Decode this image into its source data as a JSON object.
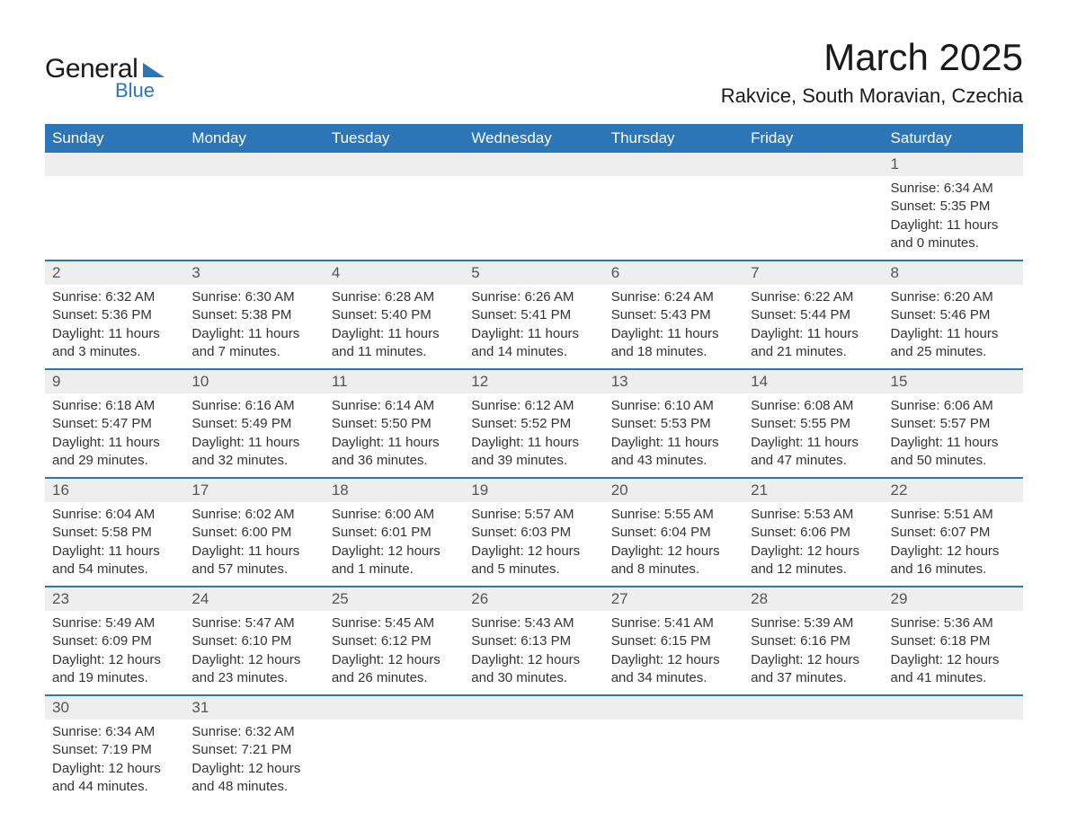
{
  "brand": {
    "word1": "General",
    "word2": "Blue"
  },
  "title": "March 2025",
  "location": "Rakvice, South Moravian, Czechia",
  "colors": {
    "header_bg": "#2c76b8",
    "header_text": "#ffffff",
    "daynum_bg": "#eeeeee",
    "border": "#2c76b8",
    "text": "#333333"
  },
  "day_headers": [
    "Sunday",
    "Monday",
    "Tuesday",
    "Wednesday",
    "Thursday",
    "Friday",
    "Saturday"
  ],
  "weeks": [
    [
      null,
      null,
      null,
      null,
      null,
      null,
      {
        "n": "1",
        "sunrise": "6:34 AM",
        "sunset": "5:35 PM",
        "dl": "11 hours and 0 minutes."
      }
    ],
    [
      {
        "n": "2",
        "sunrise": "6:32 AM",
        "sunset": "5:36 PM",
        "dl": "11 hours and 3 minutes."
      },
      {
        "n": "3",
        "sunrise": "6:30 AM",
        "sunset": "5:38 PM",
        "dl": "11 hours and 7 minutes."
      },
      {
        "n": "4",
        "sunrise": "6:28 AM",
        "sunset": "5:40 PM",
        "dl": "11 hours and 11 minutes."
      },
      {
        "n": "5",
        "sunrise": "6:26 AM",
        "sunset": "5:41 PM",
        "dl": "11 hours and 14 minutes."
      },
      {
        "n": "6",
        "sunrise": "6:24 AM",
        "sunset": "5:43 PM",
        "dl": "11 hours and 18 minutes."
      },
      {
        "n": "7",
        "sunrise": "6:22 AM",
        "sunset": "5:44 PM",
        "dl": "11 hours and 21 minutes."
      },
      {
        "n": "8",
        "sunrise": "6:20 AM",
        "sunset": "5:46 PM",
        "dl": "11 hours and 25 minutes."
      }
    ],
    [
      {
        "n": "9",
        "sunrise": "6:18 AM",
        "sunset": "5:47 PM",
        "dl": "11 hours and 29 minutes."
      },
      {
        "n": "10",
        "sunrise": "6:16 AM",
        "sunset": "5:49 PM",
        "dl": "11 hours and 32 minutes."
      },
      {
        "n": "11",
        "sunrise": "6:14 AM",
        "sunset": "5:50 PM",
        "dl": "11 hours and 36 minutes."
      },
      {
        "n": "12",
        "sunrise": "6:12 AM",
        "sunset": "5:52 PM",
        "dl": "11 hours and 39 minutes."
      },
      {
        "n": "13",
        "sunrise": "6:10 AM",
        "sunset": "5:53 PM",
        "dl": "11 hours and 43 minutes."
      },
      {
        "n": "14",
        "sunrise": "6:08 AM",
        "sunset": "5:55 PM",
        "dl": "11 hours and 47 minutes."
      },
      {
        "n": "15",
        "sunrise": "6:06 AM",
        "sunset": "5:57 PM",
        "dl": "11 hours and 50 minutes."
      }
    ],
    [
      {
        "n": "16",
        "sunrise": "6:04 AM",
        "sunset": "5:58 PM",
        "dl": "11 hours and 54 minutes."
      },
      {
        "n": "17",
        "sunrise": "6:02 AM",
        "sunset": "6:00 PM",
        "dl": "11 hours and 57 minutes."
      },
      {
        "n": "18",
        "sunrise": "6:00 AM",
        "sunset": "6:01 PM",
        "dl": "12 hours and 1 minute."
      },
      {
        "n": "19",
        "sunrise": "5:57 AM",
        "sunset": "6:03 PM",
        "dl": "12 hours and 5 minutes."
      },
      {
        "n": "20",
        "sunrise": "5:55 AM",
        "sunset": "6:04 PM",
        "dl": "12 hours and 8 minutes."
      },
      {
        "n": "21",
        "sunrise": "5:53 AM",
        "sunset": "6:06 PM",
        "dl": "12 hours and 12 minutes."
      },
      {
        "n": "22",
        "sunrise": "5:51 AM",
        "sunset": "6:07 PM",
        "dl": "12 hours and 16 minutes."
      }
    ],
    [
      {
        "n": "23",
        "sunrise": "5:49 AM",
        "sunset": "6:09 PM",
        "dl": "12 hours and 19 minutes."
      },
      {
        "n": "24",
        "sunrise": "5:47 AM",
        "sunset": "6:10 PM",
        "dl": "12 hours and 23 minutes."
      },
      {
        "n": "25",
        "sunrise": "5:45 AM",
        "sunset": "6:12 PM",
        "dl": "12 hours and 26 minutes."
      },
      {
        "n": "26",
        "sunrise": "5:43 AM",
        "sunset": "6:13 PM",
        "dl": "12 hours and 30 minutes."
      },
      {
        "n": "27",
        "sunrise": "5:41 AM",
        "sunset": "6:15 PM",
        "dl": "12 hours and 34 minutes."
      },
      {
        "n": "28",
        "sunrise": "5:39 AM",
        "sunset": "6:16 PM",
        "dl": "12 hours and 37 minutes."
      },
      {
        "n": "29",
        "sunrise": "5:36 AM",
        "sunset": "6:18 PM",
        "dl": "12 hours and 41 minutes."
      }
    ],
    [
      {
        "n": "30",
        "sunrise": "6:34 AM",
        "sunset": "7:19 PM",
        "dl": "12 hours and 44 minutes."
      },
      {
        "n": "31",
        "sunrise": "6:32 AM",
        "sunset": "7:21 PM",
        "dl": "12 hours and 48 minutes."
      },
      null,
      null,
      null,
      null,
      null
    ]
  ],
  "labels": {
    "sunrise": "Sunrise: ",
    "sunset": "Sunset: ",
    "daylight": "Daylight: "
  }
}
